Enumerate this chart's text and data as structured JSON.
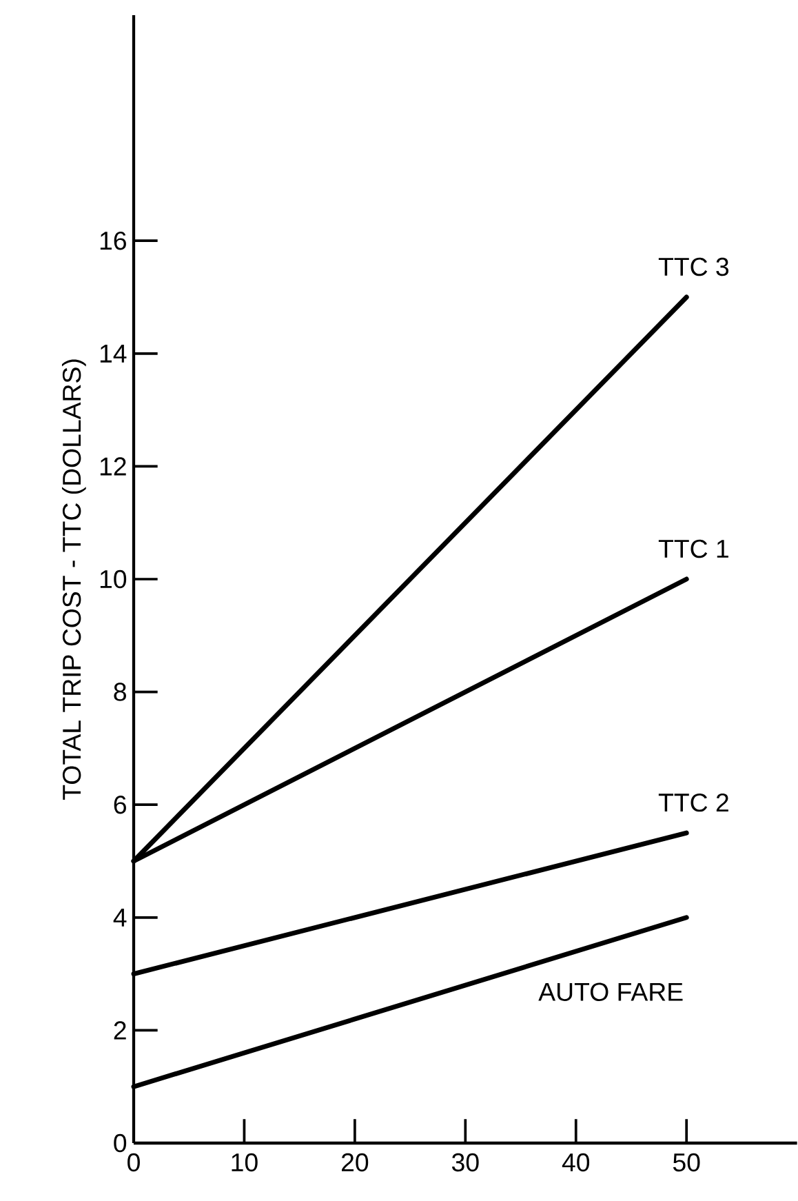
{
  "chart_data": {
    "type": "line",
    "ylabel": "TOTAL TRIP COST - TTC (DOLLARS)",
    "x": [
      0,
      50
    ],
    "series": [
      {
        "name": "TTC 3",
        "color": "#000000",
        "values": [
          5,
          15
        ]
      },
      {
        "name": "TTC 1",
        "color": "#000000",
        "values": [
          5,
          10
        ]
      },
      {
        "name": "TTC 2",
        "color": "#000000",
        "values": [
          3,
          5.5
        ]
      },
      {
        "name": "AUTO FARE",
        "color": "#000000",
        "values": [
          1,
          4
        ]
      }
    ],
    "xlim": [
      0,
      60
    ],
    "xticks": [
      0,
      10,
      20,
      30,
      40,
      50
    ],
    "ylim": [
      0,
      20
    ],
    "yticks": [
      0,
      2,
      4,
      6,
      8,
      10,
      12,
      14,
      16
    ],
    "marker": "none",
    "line_style": "solid"
  }
}
